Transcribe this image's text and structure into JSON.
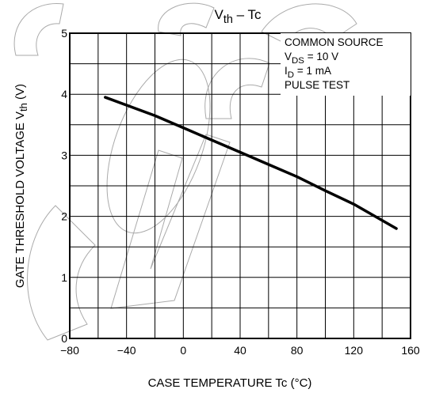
{
  "chart_data": {
    "type": "line",
    "title": {
      "main": "V",
      "sub": "th",
      "rest": " – Tc"
    },
    "xlabel": "CASE TEMPERATURE   Tc   (°C)",
    "ylabel": "GATE THRESHOLD VOLTAGE   V",
    "ylabel_sub": "th",
    "ylabel_unit": "(V)",
    "xlim": [
      -80,
      160
    ],
    "ylim": [
      0,
      5
    ],
    "x_ticks": [
      -80,
      -40,
      0,
      40,
      80,
      120,
      160
    ],
    "y_ticks": [
      0,
      1,
      2,
      3,
      4,
      5
    ],
    "x_minor_step": 20,
    "y_minor_step": 0.5,
    "grid": true,
    "series": [
      {
        "x": [
          -55,
          -20,
          0,
          20,
          40,
          60,
          80,
          100,
          120,
          150
        ],
        "y": [
          3.95,
          3.65,
          3.45,
          3.25,
          3.05,
          2.85,
          2.65,
          2.42,
          2.2,
          1.8
        ]
      }
    ],
    "conditions": [
      {
        "main": "COMMON SOURCE",
        "sub": "",
        "rest": ""
      },
      {
        "main": "V",
        "sub": "DS",
        "rest": " = 10 V"
      },
      {
        "main": "I",
        "sub": "D",
        "rest": " = 1 mA"
      },
      {
        "main": "PULSE TEST",
        "sub": "",
        "rest": ""
      }
    ],
    "line_color": "#000000",
    "grid_color": "#000000"
  }
}
